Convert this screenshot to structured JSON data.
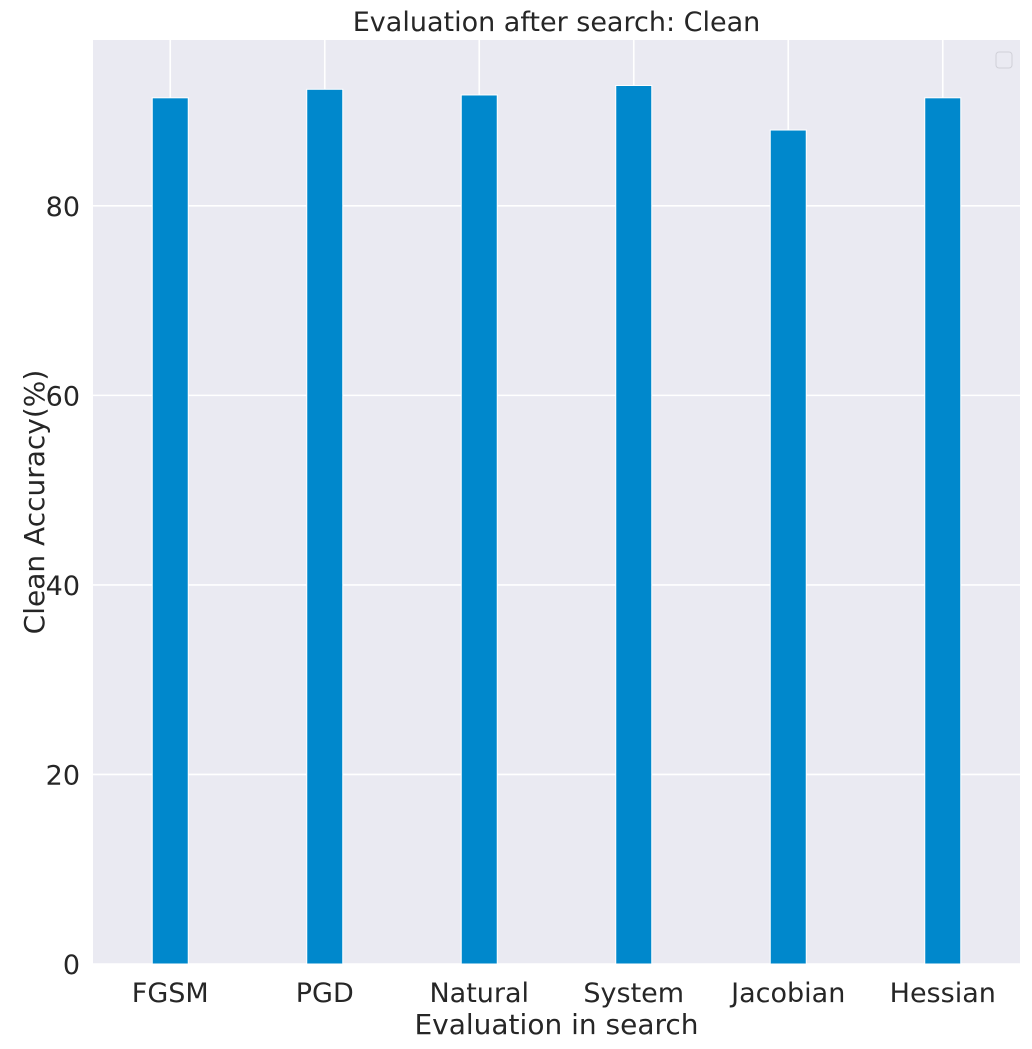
{
  "chart_data": {
    "type": "bar",
    "title": "Evaluation after search: Clean",
    "xlabel": "Evaluation in search",
    "ylabel": "Clean Accuracy(%)",
    "categories": [
      "FGSM",
      "PGD",
      "Natural",
      "System",
      "Jacobian",
      "Hessian"
    ],
    "series": [
      {
        "values": [
          91.4,
          92.3,
          91.7,
          92.7,
          88.0,
          91.4
        ]
      }
    ],
    "ylim": [
      0,
      97.5
    ],
    "yticks": [
      0,
      20,
      40,
      60,
      80
    ],
    "grid": true,
    "legend": "top-right",
    "colors": {
      "bar": "#0088cc",
      "plot_background": "#eaeaf2",
      "grid": "#ffffff",
      "text": "#262626"
    }
  }
}
